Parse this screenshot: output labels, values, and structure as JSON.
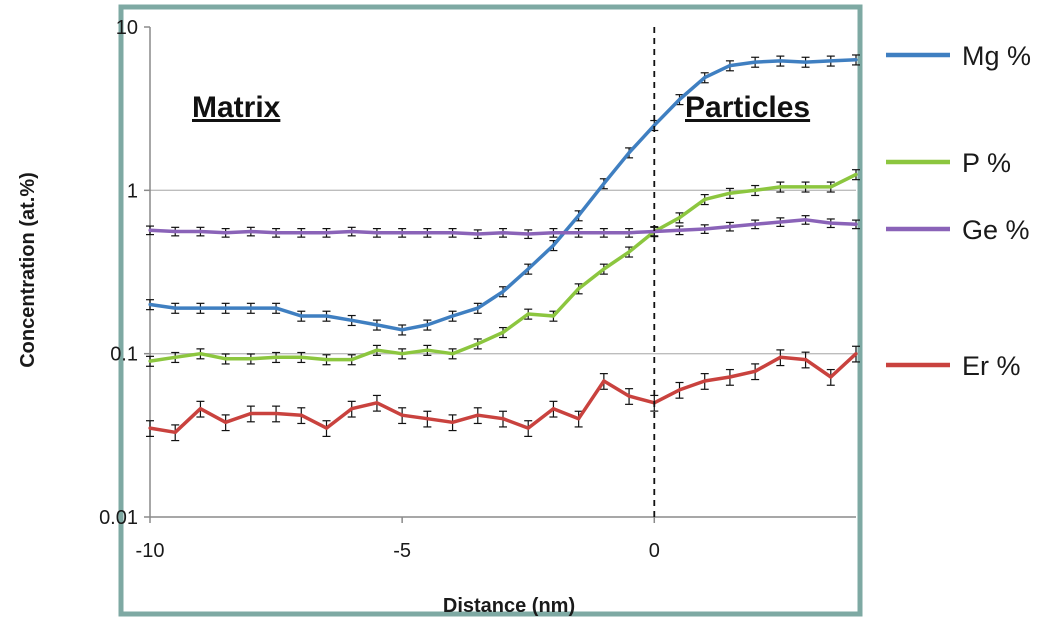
{
  "chart_data": {
    "type": "line",
    "xlabel": "Distance (nm)",
    "ylabel": "Concentration (at.%)",
    "xlim": [
      -10,
      4
    ],
    "ylim": [
      0.01,
      10
    ],
    "yscale": "log",
    "x_ticks": [
      "-10",
      "-5",
      "0"
    ],
    "y_ticks": [
      "0.01",
      "0.1",
      "1",
      "10"
    ],
    "grid": "horizontal",
    "legend_position": "right",
    "annotations": {
      "left_region": "Matrix",
      "right_region": "Particles",
      "interface_x": 0
    },
    "x": [
      -10,
      -9.5,
      -9,
      -8.5,
      -8,
      -7.5,
      -7,
      -6.5,
      -6,
      -5.5,
      -5,
      -4.5,
      -4,
      -3.5,
      -3,
      -2.5,
      -2,
      -1.5,
      -1,
      -0.5,
      0,
      0.5,
      1,
      1.5,
      2,
      2.5,
      3,
      3.5,
      4
    ],
    "series": [
      {
        "name": "Mg %",
        "color": "#3f7fc1",
        "values": [
          0.2,
          0.19,
          0.19,
          0.19,
          0.19,
          0.19,
          0.17,
          0.17,
          0.16,
          0.15,
          0.14,
          0.15,
          0.17,
          0.19,
          0.24,
          0.33,
          0.46,
          0.7,
          1.1,
          1.7,
          2.5,
          3.6,
          4.9,
          5.8,
          6.1,
          6.2,
          6.1,
          6.2,
          6.3
        ],
        "error": 0.07
      },
      {
        "name": "P %",
        "color": "#8cc63f",
        "values": [
          0.09,
          0.095,
          0.1,
          0.093,
          0.093,
          0.095,
          0.095,
          0.092,
          0.092,
          0.105,
          0.1,
          0.105,
          0.1,
          0.115,
          0.135,
          0.175,
          0.17,
          0.25,
          0.33,
          0.42,
          0.56,
          0.68,
          0.88,
          0.96,
          1.0,
          1.05,
          1.05,
          1.05,
          1.25
        ],
        "error": 0.07
      },
      {
        "name": "Ge %",
        "color": "#8a63b8",
        "values": [
          0.57,
          0.56,
          0.56,
          0.55,
          0.56,
          0.55,
          0.55,
          0.55,
          0.56,
          0.55,
          0.55,
          0.55,
          0.55,
          0.54,
          0.55,
          0.54,
          0.55,
          0.55,
          0.55,
          0.55,
          0.56,
          0.57,
          0.58,
          0.6,
          0.62,
          0.64,
          0.66,
          0.63,
          0.62
        ],
        "error": 0.06
      },
      {
        "name": "Er %",
        "color": "#c9423e",
        "values": [
          0.035,
          0.033,
          0.046,
          0.038,
          0.043,
          0.043,
          0.042,
          0.035,
          0.046,
          0.05,
          0.042,
          0.04,
          0.038,
          0.042,
          0.04,
          0.035,
          0.046,
          0.04,
          0.068,
          0.055,
          0.05,
          0.06,
          0.068,
          0.072,
          0.078,
          0.095,
          0.092,
          0.072,
          0.1
        ],
        "error": 0.11
      }
    ]
  }
}
